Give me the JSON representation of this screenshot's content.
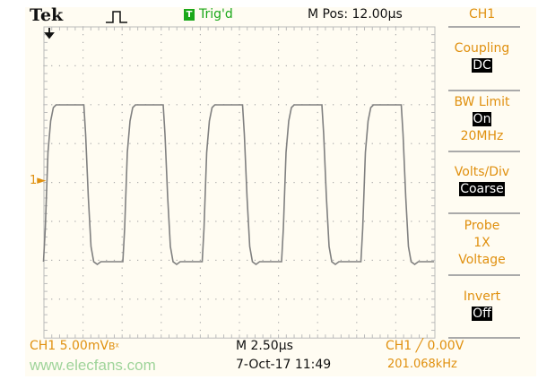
{
  "header": {
    "brand": "Tek",
    "trigger_status_icon": "T",
    "trigger_status": "Trig'd",
    "m_pos": "M Pos: 12.00µs",
    "channel": "CH1"
  },
  "menu": [
    {
      "title": "Coupling",
      "value": "DC",
      "highlighted": true
    },
    {
      "title": "BW Limit",
      "value": "On",
      "extra": "20MHz",
      "highlighted": true
    },
    {
      "title": "Volts/Div",
      "value": "Coarse",
      "highlighted": true
    },
    {
      "title": "Probe",
      "value": "1X",
      "extra": "Voltage",
      "highlighted": false
    },
    {
      "title": "Invert",
      "value": "Off",
      "highlighted": true
    }
  ],
  "footer": {
    "ch1_scale": "CH1  5.00mV",
    "bw_mark": "Bᵡ",
    "timebase": "M 2.50µs",
    "date": "7-Oct-17 11:49",
    "trigger": "CH1 ╱ 0.00V",
    "frequency": "201.068kHz"
  },
  "marker": {
    "channel_marker": "1"
  },
  "watermark": "www.elecfans.com",
  "colors": {
    "text": "#e0900f",
    "trace": "#808080",
    "trig": "#1aa81a",
    "background": "#fffcf2"
  }
}
